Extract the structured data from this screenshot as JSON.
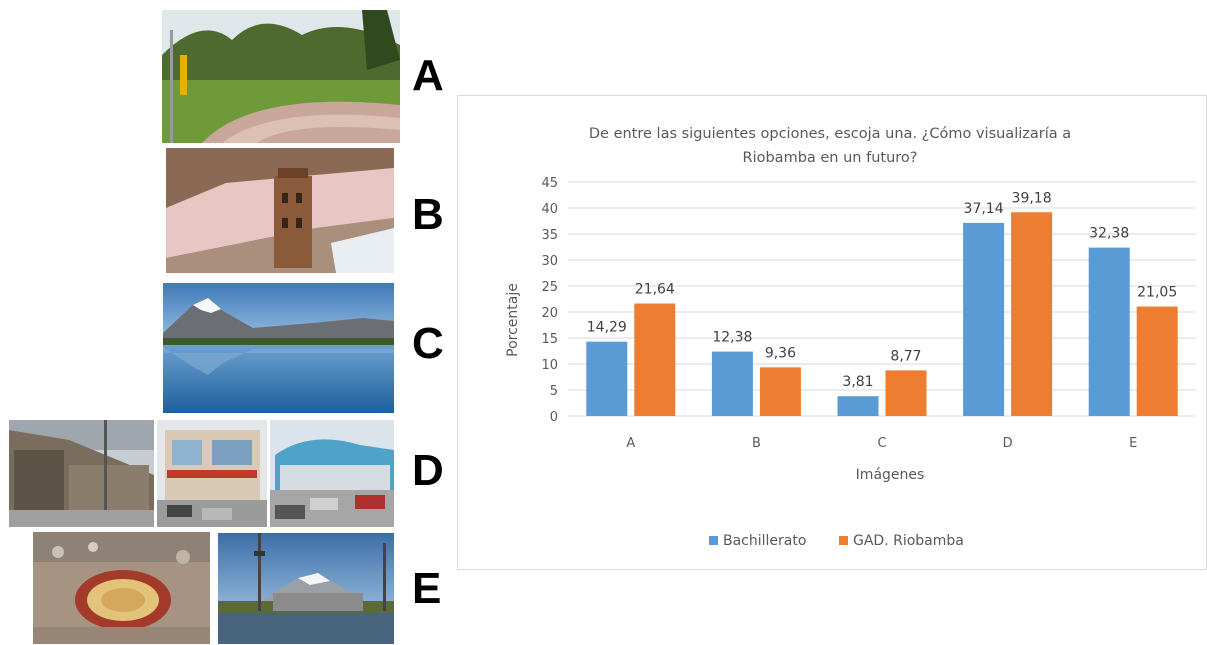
{
  "image_panels": [
    {
      "letter": "A",
      "photos": [
        "park-walkway-photo"
      ]
    },
    {
      "letter": "B",
      "photos": [
        "plaza-tower-aerial-photo"
      ]
    },
    {
      "letter": "C",
      "photos": [
        "volcano-lake-reflection-photo"
      ]
    },
    {
      "letter": "D",
      "photos": [
        "modern-building-photo",
        "commercial-street-photo",
        "shopping-center-photo"
      ]
    },
    {
      "letter": "E",
      "photos": [
        "bullring-aerial-photo",
        "stadium-volcano-photo"
      ]
    }
  ],
  "colors": {
    "bachillerato": "#5b9bd5",
    "gad": "#ed7d31",
    "grid": "#d9d9d9",
    "text": "#595959"
  },
  "chart_data": {
    "type": "bar",
    "title_lines": [
      "De entre las siguientes opciones, escoja una. ¿Cómo visualizaría a",
      "Riobamba en un futuro?"
    ],
    "xlabel": "Imágenes",
    "ylabel": "Porcentaje",
    "categories": [
      "A",
      "B",
      "C",
      "D",
      "E"
    ],
    "ylim": [
      0,
      45
    ],
    "yticks": [
      0,
      5,
      10,
      15,
      20,
      25,
      30,
      35,
      40,
      45
    ],
    "grid": true,
    "legend_position": "bottom",
    "series": [
      {
        "name": "Bachillerato",
        "values": [
          14.29,
          12.38,
          3.81,
          37.14,
          32.38
        ],
        "labels": [
          "14,29",
          "12,38",
          "3,81",
          "37,14",
          "32,38"
        ]
      },
      {
        "name": "GAD. Riobamba",
        "values": [
          21.64,
          9.36,
          8.77,
          39.18,
          21.05
        ],
        "labels": [
          "21,64",
          "9,36",
          "8,77",
          "39,18",
          "21,05"
        ]
      }
    ]
  }
}
